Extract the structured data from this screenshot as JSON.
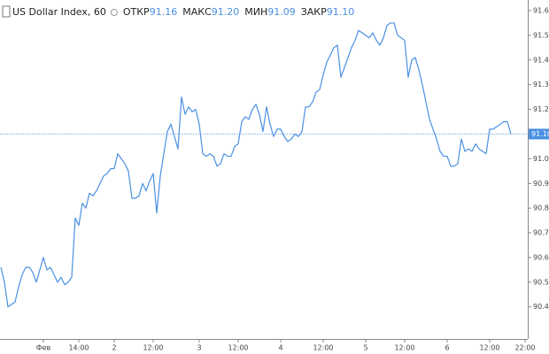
{
  "chart_data": {
    "type": "line",
    "header": {
      "symbol": "US Dollar Index, 60",
      "stats": [
        {
          "label": "ОТКР",
          "value": "91.16"
        },
        {
          "label": "МАКС",
          "value": "91.20"
        },
        {
          "label": "МИН",
          "value": "91.09"
        },
        {
          "label": "ЗАКР",
          "value": "91.10"
        }
      ]
    },
    "categories": [
      null,
      null,
      null,
      null,
      null,
      null,
      null,
      null,
      null,
      null,
      null,
      null,
      "Фев",
      null,
      null,
      null,
      null,
      null,
      null,
      null,
      null,
      null,
      "14:00",
      null,
      null,
      null,
      null,
      null,
      null,
      null,
      null,
      null,
      "2",
      null,
      null,
      null,
      null,
      null,
      null,
      null,
      null,
      null,
      null,
      "12:00",
      null,
      null,
      null,
      null,
      null,
      null,
      null,
      null,
      null,
      null,
      null,
      null,
      "3",
      null,
      null,
      null,
      null,
      null,
      null,
      null,
      null,
      null,
      null,
      "12:00",
      null,
      null,
      null,
      null,
      null,
      null,
      null,
      null,
      null,
      null,
      null,
      "4",
      null,
      null,
      null,
      null,
      null,
      null,
      null,
      null,
      null,
      null,
      null,
      "12:00",
      null,
      null,
      null,
      null,
      null,
      null,
      null,
      null,
      null,
      null,
      null,
      "5",
      null,
      null,
      null,
      null,
      null,
      null,
      null,
      null,
      null,
      null,
      "12:00",
      null,
      null,
      null,
      null,
      null,
      null,
      null,
      null,
      null,
      null,
      null,
      "6",
      null,
      null,
      null,
      null,
      null,
      null,
      null,
      null,
      null,
      null,
      null,
      "12:00",
      null,
      null,
      null,
      null,
      null,
      null,
      null,
      null,
      null,
      "22:00"
    ],
    "values": [
      90.56,
      90.5,
      90.4,
      90.41,
      90.42,
      90.48,
      90.53,
      90.56,
      90.56,
      90.54,
      90.5,
      90.55,
      90.6,
      90.55,
      90.56,
      90.53,
      90.5,
      90.52,
      90.49,
      90.5,
      90.52,
      90.76,
      90.73,
      90.82,
      90.8,
      90.86,
      90.85,
      90.87,
      90.9,
      90.93,
      90.94,
      90.96,
      90.96,
      91.02,
      91.0,
      90.98,
      90.95,
      90.84,
      90.84,
      90.85,
      90.9,
      90.87,
      90.91,
      90.94,
      90.78,
      90.93,
      91.02,
      91.11,
      91.14,
      91.09,
      91.04,
      91.25,
      91.18,
      91.21,
      91.19,
      91.2,
      91.14,
      91.02,
      91.01,
      91.02,
      91.01,
      90.97,
      90.98,
      91.02,
      91.01,
      91.01,
      91.05,
      91.06,
      91.15,
      91.17,
      91.16,
      91.2,
      91.22,
      91.18,
      91.11,
      91.21,
      91.14,
      91.09,
      91.12,
      91.12,
      91.09,
      91.07,
      91.08,
      91.1,
      91.09,
      91.11,
      91.21,
      91.21,
      91.23,
      91.27,
      91.28,
      91.34,
      91.39,
      91.42,
      91.45,
      91.46,
      91.33,
      91.37,
      91.41,
      91.45,
      91.48,
      91.52,
      91.51,
      91.5,
      91.49,
      91.51,
      91.48,
      91.46,
      91.49,
      91.54,
      91.55,
      91.55,
      91.5,
      91.49,
      91.48,
      91.33,
      91.4,
      91.41,
      91.36,
      91.3,
      91.23,
      91.16,
      91.12,
      91.08,
      91.03,
      91.01,
      91.01,
      90.97,
      90.97,
      90.98,
      91.08,
      91.03,
      91.04,
      91.03,
      91.06,
      91.04,
      91.03,
      91.02,
      91.12,
      91.12,
      91.13,
      91.14,
      91.15,
      91.15,
      91.1,
      null,
      null,
      null,
      null
    ],
    "color": "#4a90e2",
    "ylim": [
      90.27,
      91.643
    ],
    "yticks": [
      {
        "value": 91.6,
        "label": "91.60"
      },
      {
        "value": 91.5,
        "label": "91.50"
      },
      {
        "value": 91.4,
        "label": "91.40"
      },
      {
        "value": 91.3,
        "label": "91.30"
      },
      {
        "value": 91.2,
        "label": "91.20"
      },
      {
        "value": 91.1,
        "label": "91.10"
      },
      {
        "value": 91.0,
        "label": "91.00"
      },
      {
        "value": 90.9,
        "label": "90.90"
      },
      {
        "value": 90.8,
        "label": "90.80"
      },
      {
        "value": 90.7,
        "label": "90.70"
      },
      {
        "value": 90.6,
        "label": "90.60"
      },
      {
        "value": 90.5,
        "label": "90.50"
      },
      {
        "value": 90.4,
        "label": "90.40"
      }
    ],
    "price_line": {
      "value": 91.1,
      "label": "91.10"
    }
  }
}
